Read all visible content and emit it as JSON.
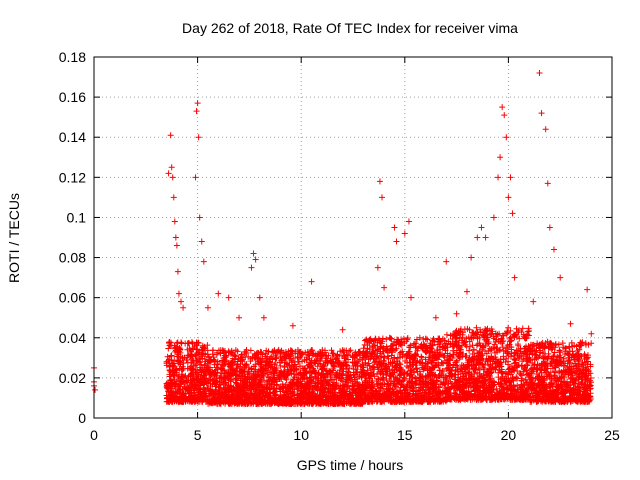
{
  "chart_data": {
    "type": "scatter",
    "title": "Day 262 of 2018, Rate Of TEC Index for receiver vima",
    "xlabel": "GPS time / hours",
    "ylabel": "ROTI / TECUs",
    "xlim": [
      0,
      25
    ],
    "ylim": [
      0,
      0.18
    ],
    "x_ticks": [
      "0",
      "5",
      "10",
      "15",
      "20",
      "25"
    ],
    "x_tick_values": [
      0,
      5,
      10,
      15,
      20,
      25
    ],
    "y_ticks": [
      "0",
      "0.02",
      "0.04",
      "0.06",
      "0.08",
      "0.1",
      "0.12",
      "0.14",
      "0.16",
      "0.18"
    ],
    "y_tick_values": [
      0,
      0.02,
      0.04,
      0.06,
      0.08,
      0.1,
      0.12,
      0.14,
      0.16,
      0.18
    ],
    "grid": true,
    "legend": "none",
    "marker": "+",
    "color": "#ff0000",
    "series": [
      {
        "x": [
          0.0,
          0.0,
          0.0,
          0.05,
          3.6,
          3.7,
          3.75,
          3.8,
          3.85,
          3.9,
          3.95,
          4.0,
          4.05,
          4.1,
          4.2,
          4.3,
          4.9,
          4.95,
          5.0,
          5.05,
          5.1,
          5.2,
          5.3,
          5.5,
          6.0,
          6.5,
          7.0,
          7.6,
          7.7,
          7.8,
          8.0,
          8.2,
          9.6,
          10.5,
          12.0,
          13.7,
          13.8,
          13.9,
          14.0,
          14.5,
          14.6,
          15.0,
          15.2,
          15.3,
          16.5,
          17.0,
          17.5,
          18.0,
          18.2,
          18.5,
          18.7,
          18.9,
          19.3,
          19.5,
          19.6,
          19.7,
          19.8,
          19.9,
          20.0,
          20.1,
          20.2,
          20.3,
          21.2,
          21.5,
          21.6,
          21.8,
          21.9,
          22.0,
          22.2,
          22.5,
          23.0,
          23.8,
          24.0
        ],
        "y": [
          0.016,
          0.018,
          0.025,
          0.014,
          0.122,
          0.141,
          0.125,
          0.12,
          0.11,
          0.098,
          0.09,
          0.086,
          0.073,
          0.062,
          0.058,
          0.055,
          0.12,
          0.153,
          0.157,
          0.14,
          0.1,
          0.088,
          0.078,
          0.055,
          0.062,
          0.06,
          0.05,
          0.075,
          0.082,
          0.079,
          0.06,
          0.05,
          0.046,
          0.068,
          0.044,
          0.075,
          0.118,
          0.11,
          0.065,
          0.095,
          0.088,
          0.092,
          0.098,
          0.06,
          0.05,
          0.078,
          0.052,
          0.063,
          0.08,
          0.09,
          0.095,
          0.09,
          0.1,
          0.12,
          0.13,
          0.155,
          0.151,
          0.14,
          0.11,
          0.12,
          0.102,
          0.07,
          0.058,
          0.172,
          0.152,
          0.144,
          0.117,
          0.095,
          0.084,
          0.07,
          0.047,
          0.064,
          0.042
        ]
      }
    ],
    "dense_band": [
      {
        "x0": 3.5,
        "x1": 5.5,
        "ymin": 0.008,
        "ymax": 0.038
      },
      {
        "x0": 5.5,
        "x1": 9.0,
        "ymin": 0.007,
        "ymax": 0.034
      },
      {
        "x0": 9.0,
        "x1": 13.0,
        "ymin": 0.007,
        "ymax": 0.034
      },
      {
        "x0": 13.0,
        "x1": 17.0,
        "ymin": 0.008,
        "ymax": 0.04
      },
      {
        "x0": 17.0,
        "x1": 21.0,
        "ymin": 0.009,
        "ymax": 0.045
      },
      {
        "x0": 21.0,
        "x1": 24.0,
        "ymin": 0.008,
        "ymax": 0.038
      }
    ]
  }
}
